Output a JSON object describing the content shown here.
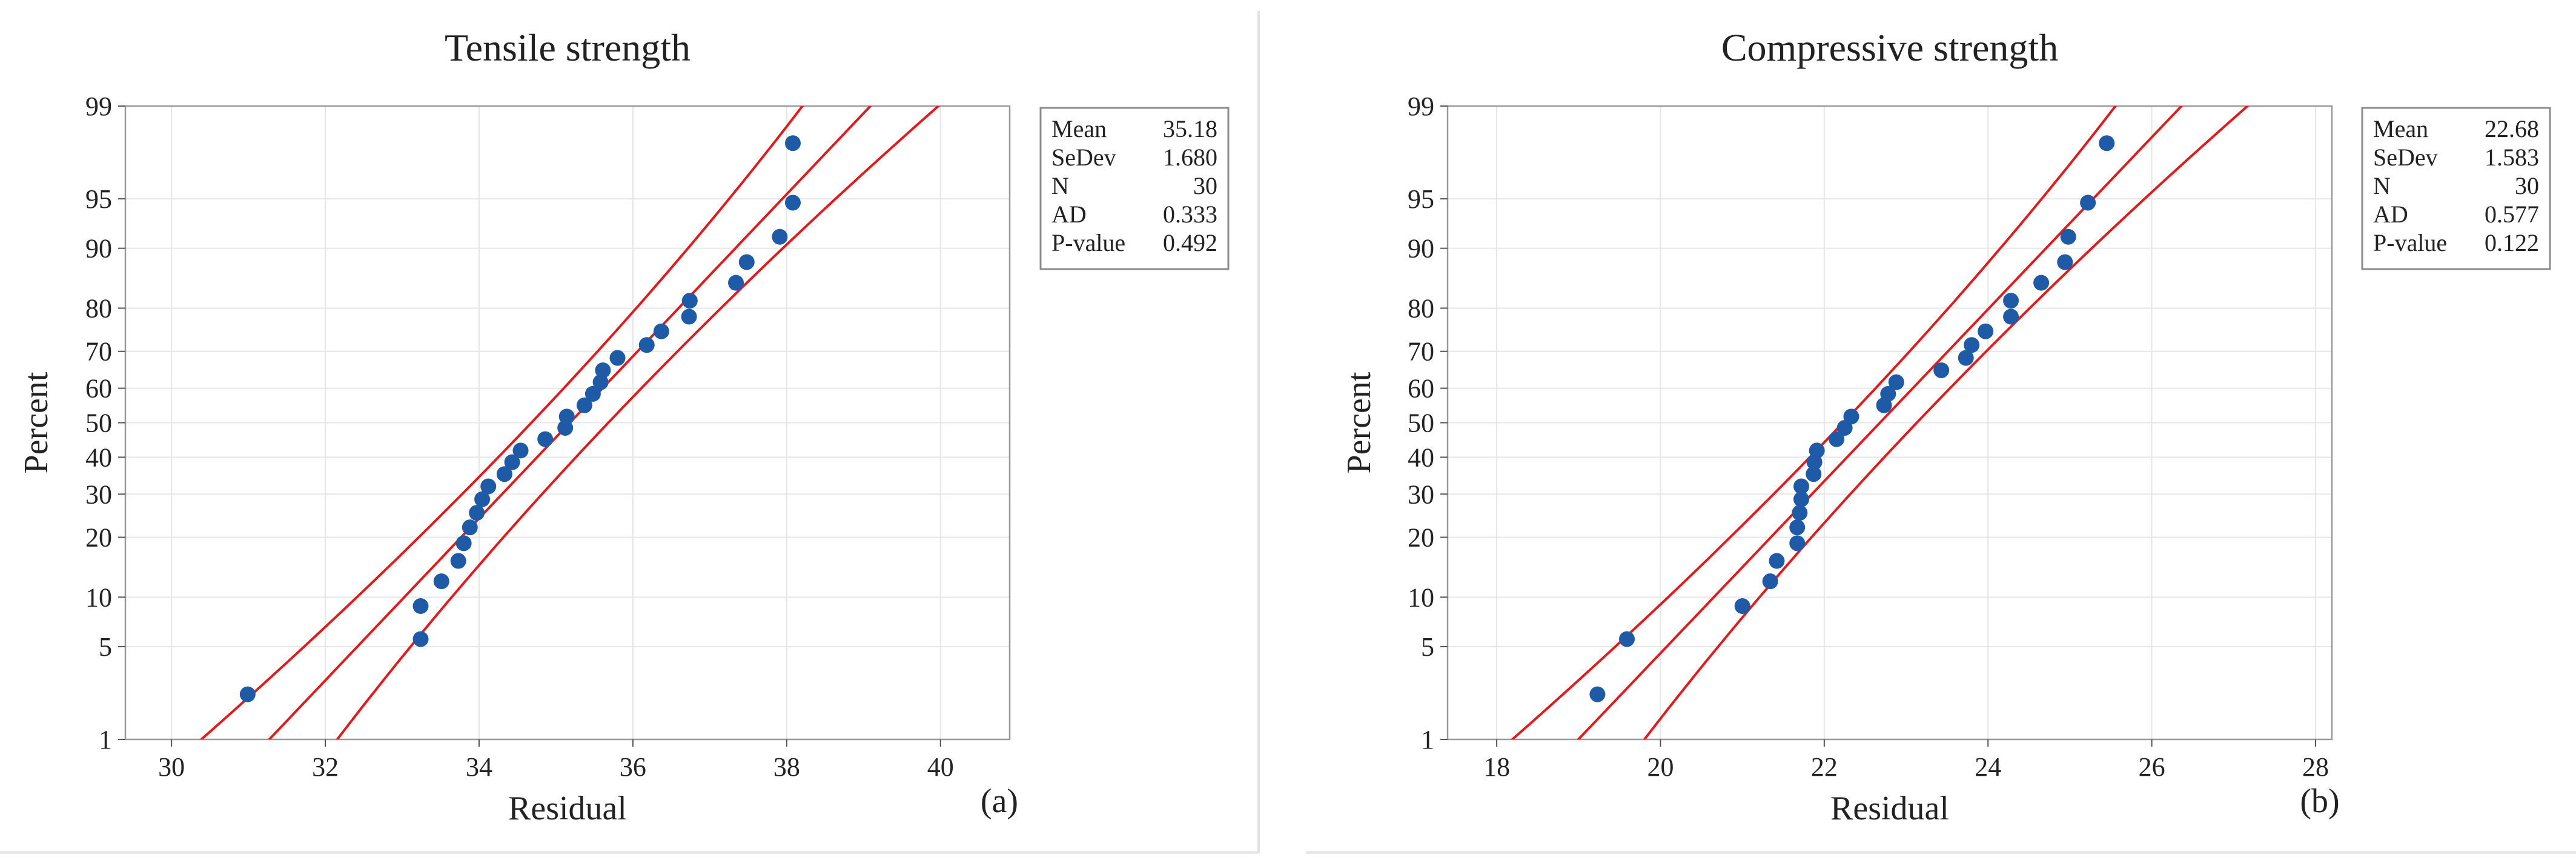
{
  "chart_data": [
    {
      "type": "scatter",
      "subtype": "normal-probability-plot",
      "title": "Tensile strength",
      "xlabel": "Residual",
      "ylabel": "Percent",
      "panel_label": "(a)",
      "xlim": [
        29.4,
        40.9
      ],
      "xticks": [
        "30",
        "32",
        "34",
        "36",
        "38",
        "40"
      ],
      "yticks": [
        "1",
        "5",
        "10",
        "20",
        "30",
        "40",
        "50",
        "60",
        "70",
        "80",
        "90",
        "95",
        "99"
      ],
      "y_scale": "normal-probability",
      "grid": true,
      "stats": [
        {
          "label": "Mean",
          "value": "35.18"
        },
        {
          "label": "SeDev",
          "value": "1.680"
        },
        {
          "label": "N",
          "value": "30"
        },
        {
          "label": "AD",
          "value": "0.333"
        },
        {
          "label": "P-value",
          "value": "0.492"
        }
      ],
      "stats_placement": "right",
      "fit": {
        "mean": 35.18,
        "sd": 1.68,
        "band_halfwidth": [
          1.2,
          0.5,
          1.2
        ]
      },
      "points": [
        [
          30.99,
          2.3
        ],
        [
          33.24,
          5.6
        ],
        [
          33.24,
          8.9
        ],
        [
          33.51,
          12.2
        ],
        [
          33.73,
          15.5
        ],
        [
          33.8,
          18.8
        ],
        [
          33.88,
          22.1
        ],
        [
          33.97,
          25.4
        ],
        [
          34.04,
          28.7
        ],
        [
          34.12,
          32.0
        ],
        [
          34.33,
          35.3
        ],
        [
          34.43,
          38.6
        ],
        [
          34.54,
          41.9
        ],
        [
          34.86,
          45.2
        ],
        [
          35.12,
          48.5
        ],
        [
          35.14,
          51.8
        ],
        [
          35.37,
          55.1
        ],
        [
          35.48,
          58.4
        ],
        [
          35.58,
          61.7
        ],
        [
          35.61,
          65.0
        ],
        [
          35.8,
          68.3
        ],
        [
          36.18,
          71.6
        ],
        [
          36.37,
          74.9
        ],
        [
          36.73,
          78.2
        ],
        [
          36.74,
          81.5
        ],
        [
          37.34,
          84.8
        ],
        [
          37.48,
          88.1
        ],
        [
          37.91,
          91.4
        ],
        [
          38.08,
          94.7
        ],
        [
          38.08,
          98.0
        ]
      ],
      "band_color": "#e31a1c",
      "point_color": "#1f5aa6"
    },
    {
      "type": "scatter",
      "subtype": "normal-probability-plot",
      "title": "Compressive strength",
      "xlabel": "Residual",
      "ylabel": "Percent",
      "panel_label": "(b)",
      "xlim": [
        17.4,
        28.2
      ],
      "xticks": [
        "18",
        "20",
        "22",
        "24",
        "26",
        "28"
      ],
      "yticks": [
        "1",
        "5",
        "10",
        "20",
        "30",
        "40",
        "50",
        "60",
        "70",
        "80",
        "90",
        "95",
        "99"
      ],
      "y_scale": "normal-probability",
      "grid": true,
      "stats": [
        {
          "label": "Mean",
          "value": "22.68"
        },
        {
          "label": "SeDev",
          "value": "1.583"
        },
        {
          "label": "N",
          "value": "30"
        },
        {
          "label": "AD",
          "value": "0.577"
        },
        {
          "label": "P-value",
          "value": "0.122"
        }
      ],
      "stats_placement": "right",
      "fit": {
        "mean": 22.68,
        "sd": 1.583,
        "band_halfwidth": [
          1.1,
          0.45,
          1.1
        ]
      },
      "points": [
        [
          19.23,
          2.3
        ],
        [
          19.59,
          5.6
        ],
        [
          21.0,
          8.9
        ],
        [
          21.34,
          12.2
        ],
        [
          21.42,
          15.5
        ],
        [
          21.67,
          18.8
        ],
        [
          21.67,
          22.1
        ],
        [
          21.7,
          25.4
        ],
        [
          21.72,
          28.7
        ],
        [
          21.72,
          32.0
        ],
        [
          21.87,
          35.3
        ],
        [
          21.88,
          38.6
        ],
        [
          21.91,
          41.9
        ],
        [
          22.15,
          45.2
        ],
        [
          22.25,
          48.5
        ],
        [
          22.33,
          51.8
        ],
        [
          22.73,
          55.1
        ],
        [
          22.78,
          58.4
        ],
        [
          22.88,
          61.7
        ],
        [
          23.43,
          65.0
        ],
        [
          23.73,
          68.3
        ],
        [
          23.8,
          71.6
        ],
        [
          23.97,
          74.9
        ],
        [
          24.28,
          78.2
        ],
        [
          24.28,
          81.5
        ],
        [
          24.65,
          84.8
        ],
        [
          24.94,
          88.1
        ],
        [
          24.98,
          91.4
        ],
        [
          25.22,
          94.7
        ],
        [
          25.45,
          98.0
        ]
      ],
      "band_color": "#e31a1c",
      "point_color": "#1f5aa6"
    }
  ]
}
